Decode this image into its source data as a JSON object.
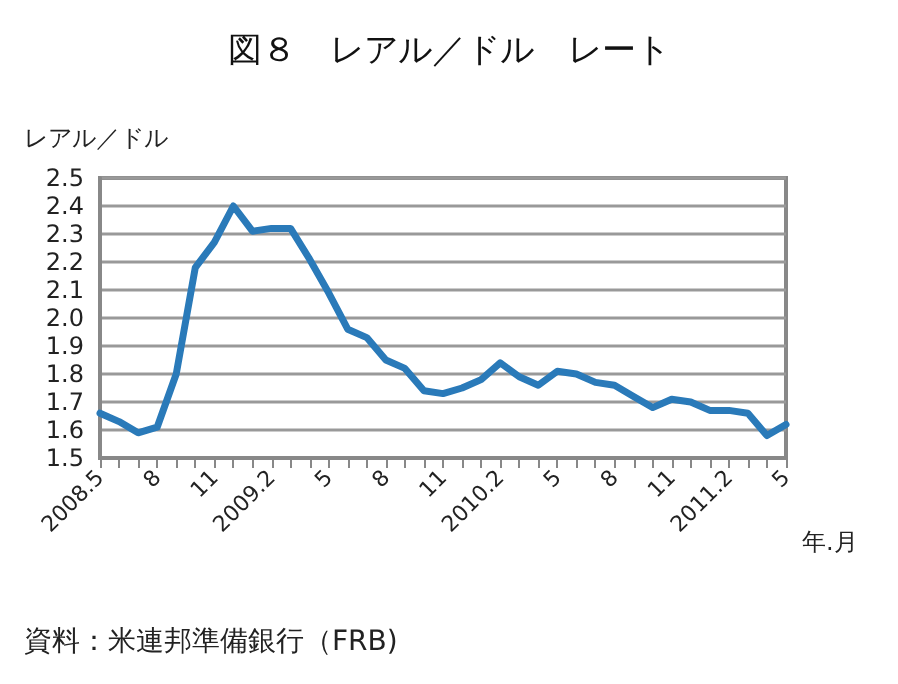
{
  "chart_data": {
    "type": "line",
    "title": "図８　レアル／ドル　レート",
    "ylabel": "レアル／ドル",
    "xlabel": "年.月",
    "annotations": [
      "資料：米連邦準備銀行（FRB)"
    ],
    "categories": [
      "2008.5",
      null,
      null,
      "8",
      null,
      null,
      "11",
      null,
      null,
      "2009.2",
      null,
      null,
      "5",
      null,
      null,
      "8",
      null,
      null,
      "11",
      null,
      null,
      "2010.2",
      null,
      null,
      "5",
      null,
      null,
      "8",
      null,
      null,
      "11",
      null,
      null,
      "2011.2",
      null,
      null,
      "5"
    ],
    "series": [
      {
        "color": "#2a7ab9",
        "values": [
          1.66,
          1.63,
          1.59,
          1.61,
          1.8,
          2.18,
          2.27,
          2.4,
          2.31,
          2.32,
          2.32,
          2.21,
          2.09,
          1.96,
          1.93,
          1.85,
          1.82,
          1.74,
          1.73,
          1.75,
          1.78,
          1.84,
          1.79,
          1.76,
          1.81,
          1.8,
          1.77,
          1.76,
          1.72,
          1.68,
          1.71,
          1.7,
          1.67,
          1.67,
          1.66,
          1.58,
          1.62
        ]
      }
    ],
    "ylim": [
      1.5,
      2.5
    ],
    "yticks": [
      1.5,
      1.6,
      1.7,
      1.8,
      1.9,
      {
        "value": 2,
        "label": "2.0"
      },
      2.1,
      2.2,
      2.3,
      2.4,
      2.5
    ],
    "grid": "y",
    "marker": "none",
    "line_style": "solid"
  }
}
